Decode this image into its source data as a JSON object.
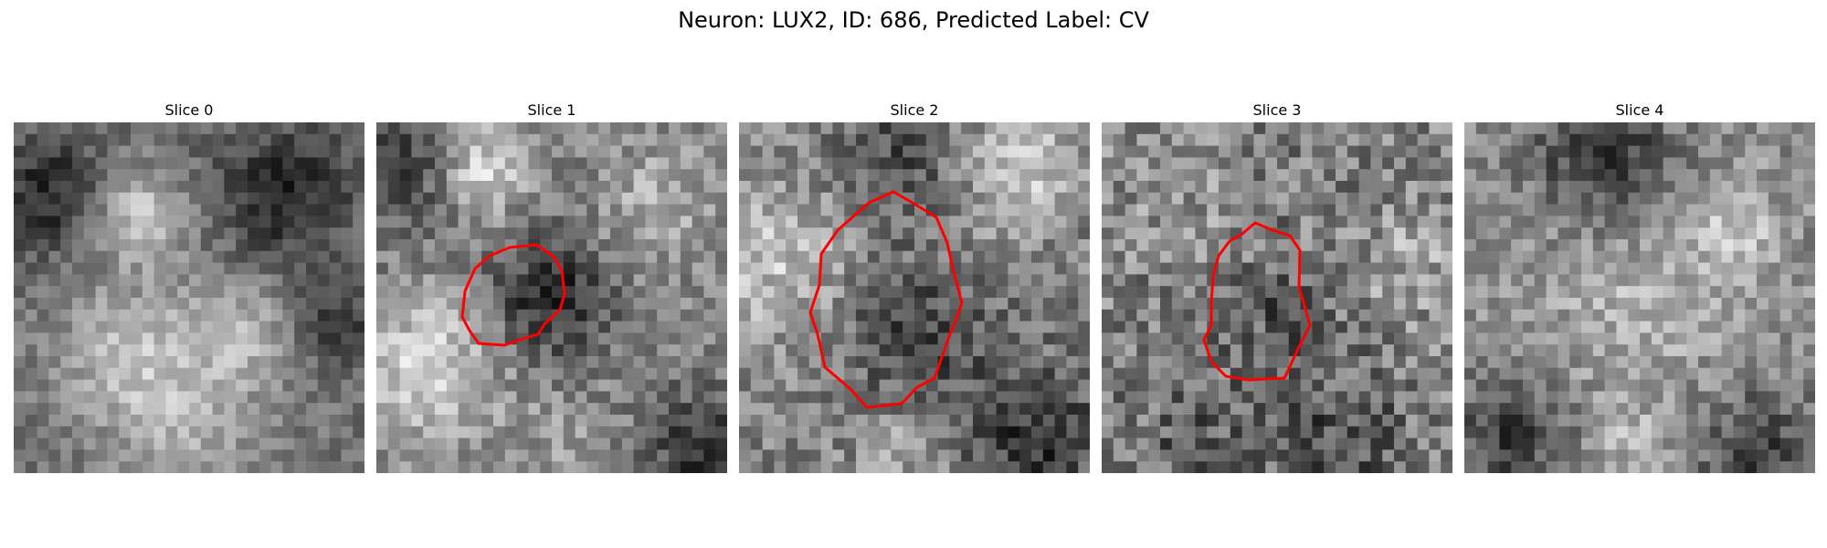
{
  "figure": {
    "title": "Neuron: LUX2, ID: 686, Predicted Label: CV"
  },
  "panels": [
    {
      "title": "Slice 0",
      "has_contour": false
    },
    {
      "title": "Slice 1",
      "has_contour": true
    },
    {
      "title": "Slice 2",
      "has_contour": true
    },
    {
      "title": "Slice 3",
      "has_contour": true
    },
    {
      "title": "Slice 4",
      "has_contour": false
    }
  ],
  "colors": {
    "contour": "#ff0000",
    "colormap": "grayscale"
  }
}
